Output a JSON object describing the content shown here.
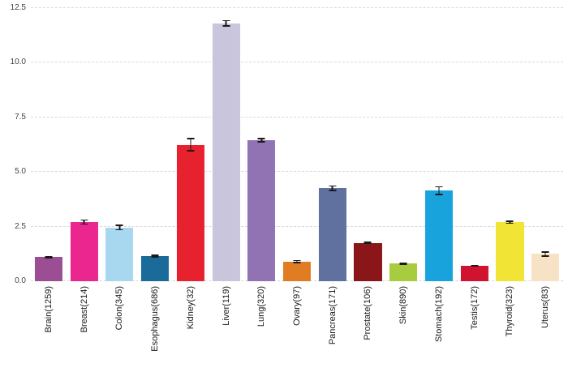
{
  "chart_data": {
    "type": "bar",
    "title": "",
    "xlabel": "",
    "ylabel": "",
    "ylim": [
      0,
      12.5
    ],
    "grid": "horizontal-dashed",
    "legend": "none",
    "ytick_labels": [
      "0.0",
      "2.5",
      "5.0",
      "7.5",
      "10.0",
      "12.5"
    ],
    "ytick_values": [
      0,
      2.5,
      5,
      7.5,
      10,
      12.5
    ],
    "categories": [
      "Brain(1259)",
      "Breast(214)",
      "Colon(345)",
      "Esophagus(686)",
      "Kidney(32)",
      "Liver(119)",
      "Lung(320)",
      "Ovary(97)",
      "Pancreas(171)",
      "Prostate(106)",
      "Skin(890)",
      "Stomach(192)",
      "Testis(172)",
      "Thyroid(323)",
      "Uterus(83)"
    ],
    "values": [
      1.1,
      2.7,
      2.45,
      1.15,
      6.25,
      11.8,
      6.45,
      0.9,
      4.25,
      1.75,
      0.8,
      4.15,
      0.7,
      2.7,
      1.25
    ],
    "errors": [
      0.06,
      0.12,
      0.13,
      0.07,
      0.3,
      0.15,
      0.1,
      0.08,
      0.13,
      0.05,
      0.05,
      0.2,
      0.05,
      0.08,
      0.12
    ],
    "bar_colors": [
      "#9C4E95",
      "#EC268F",
      "#A8D8F0",
      "#1A6A9A",
      "#E8212E",
      "#C8C5DC",
      "#9173B4",
      "#E07D22",
      "#60719F",
      "#8A1619",
      "#A8CC3F",
      "#18A3DC",
      "#D11330",
      "#F1E435",
      "#F8E2C6"
    ],
    "error_bar_color": "#1a1a1a",
    "gridline_color": "#d9d9d9",
    "background_color": "#ffffff"
  }
}
